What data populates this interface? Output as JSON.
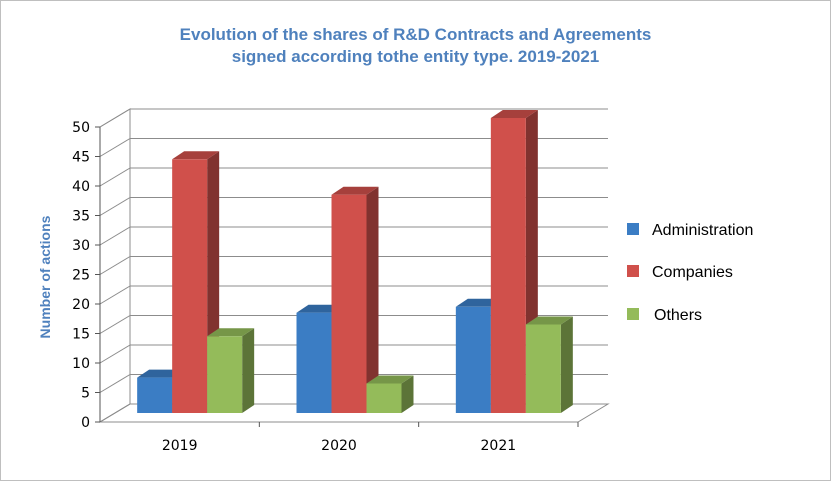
{
  "chart_data": {
    "type": "bar",
    "title_lines": [
      "Evolution of the shares of R&D Contracts and Agreements",
      "signed according tothe entity type. 2019-2021"
    ],
    "ylabel": "Number of actions",
    "xlabel": "",
    "categories": [
      "2019",
      "2020",
      "2021"
    ],
    "ylim": [
      0,
      50
    ],
    "yticks": [
      "0",
      "5",
      "10",
      "15",
      "20",
      "25",
      "30",
      "35",
      "40",
      "45",
      "50"
    ],
    "series": [
      {
        "name": "Administration",
        "values": [
          6,
          17,
          18
        ],
        "color": "#3b7dc4"
      },
      {
        "name": "Companies",
        "values": [
          43,
          37,
          50
        ],
        "color": "#d0504b"
      },
      {
        "name": "Others",
        "values": [
          13,
          5,
          15
        ],
        "color": "#94bb5a"
      }
    ],
    "legend_position": "right",
    "grid": true,
    "style": "3d-clustered-column"
  }
}
